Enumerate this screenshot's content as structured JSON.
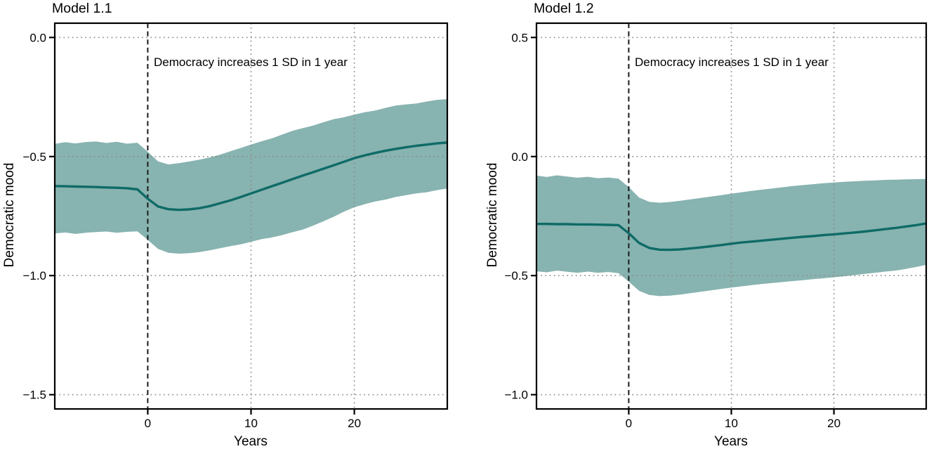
{
  "figure": {
    "background": "#ffffff",
    "colors": {
      "line": "#0f6b67",
      "band": "#87b3b0",
      "grid": "#8d8d8d",
      "vline": "#1a1a1a",
      "axis": "#000000",
      "text": "#000000"
    }
  },
  "chart_data": [
    {
      "type": "line",
      "title": "Model 1.1",
      "xlabel": "Years",
      "ylabel": "Democratic mood",
      "annotation": "Democracy increases 1 SD in 1 year",
      "xlim": [
        -9,
        29
      ],
      "ylim": [
        -1.56,
        0.06
      ],
      "xticks": [
        0,
        10,
        20
      ],
      "xtick_labels": [
        "0",
        "10",
        "20"
      ],
      "yticks": [
        0,
        -0.5,
        -1.0,
        -1.5
      ],
      "ytick_labels": [
        "0.0",
        "−0.5",
        "−1.0",
        "−1.5"
      ],
      "vline_x": 0,
      "grid": "dotted",
      "legend": "none",
      "x": [
        -9,
        -8,
        -7,
        -6,
        -5,
        -4,
        -3,
        -2,
        -1,
        0,
        1,
        2,
        3,
        4,
        5,
        6,
        7,
        8,
        9,
        10,
        11,
        12,
        13,
        14,
        15,
        16,
        17,
        18,
        19,
        20,
        21,
        22,
        23,
        24,
        25,
        26,
        27,
        28,
        29
      ],
      "series": [
        {
          "name": "estimate",
          "values": [
            -0.624,
            -0.625,
            -0.626,
            -0.627,
            -0.628,
            -0.63,
            -0.631,
            -0.633,
            -0.638,
            -0.677,
            -0.71,
            -0.721,
            -0.724,
            -0.722,
            -0.717,
            -0.708,
            -0.696,
            -0.684,
            -0.67,
            -0.655,
            -0.64,
            -0.625,
            -0.61,
            -0.595,
            -0.58,
            -0.566,
            -0.551,
            -0.537,
            -0.522,
            -0.507,
            -0.495,
            -0.485,
            -0.476,
            -0.468,
            -0.461,
            -0.455,
            -0.45,
            -0.445,
            -0.441
          ]
        },
        {
          "name": "ci_upper",
          "values": [
            -0.447,
            -0.44,
            -0.445,
            -0.439,
            -0.437,
            -0.443,
            -0.438,
            -0.446,
            -0.442,
            -0.48,
            -0.52,
            -0.533,
            -0.528,
            -0.521,
            -0.513,
            -0.504,
            -0.492,
            -0.478,
            -0.464,
            -0.45,
            -0.436,
            -0.424,
            -0.408,
            -0.392,
            -0.381,
            -0.37,
            -0.356,
            -0.343,
            -0.335,
            -0.324,
            -0.314,
            -0.307,
            -0.296,
            -0.286,
            -0.281,
            -0.277,
            -0.269,
            -0.262,
            -0.259
          ]
        },
        {
          "name": "ci_lower",
          "values": [
            -0.823,
            -0.819,
            -0.825,
            -0.82,
            -0.817,
            -0.815,
            -0.82,
            -0.816,
            -0.814,
            -0.85,
            -0.888,
            -0.904,
            -0.908,
            -0.906,
            -0.901,
            -0.894,
            -0.885,
            -0.876,
            -0.869,
            -0.858,
            -0.847,
            -0.84,
            -0.83,
            -0.818,
            -0.807,
            -0.79,
            -0.772,
            -0.753,
            -0.731,
            -0.713,
            -0.7,
            -0.689,
            -0.681,
            -0.67,
            -0.662,
            -0.655,
            -0.65,
            -0.641,
            -0.634
          ]
        }
      ]
    },
    {
      "type": "line",
      "title": "Model 1.2",
      "xlabel": "Years",
      "ylabel": "Democratic mood",
      "annotation": "Democracy increases 1 SD in 1 year",
      "xlim": [
        -9,
        29
      ],
      "ylim": [
        -1.06,
        0.56
      ],
      "xticks": [
        0,
        10,
        20
      ],
      "xtick_labels": [
        "0",
        "10",
        "20"
      ],
      "yticks": [
        0.5,
        0,
        -0.5,
        -1.0
      ],
      "ytick_labels": [
        "0.5",
        "0.0",
        "−0.5",
        "−1.0"
      ],
      "vline_x": 0,
      "grid": "dotted",
      "legend": "none",
      "x": [
        -9,
        -8,
        -7,
        -6,
        -5,
        -4,
        -3,
        -2,
        -1,
        0,
        1,
        2,
        3,
        4,
        5,
        6,
        7,
        8,
        9,
        10,
        11,
        12,
        13,
        14,
        15,
        16,
        17,
        18,
        19,
        20,
        21,
        22,
        23,
        24,
        25,
        26,
        27,
        28,
        29
      ],
      "series": [
        {
          "name": "estimate",
          "values": [
            -0.283,
            -0.283,
            -0.284,
            -0.284,
            -0.285,
            -0.285,
            -0.286,
            -0.287,
            -0.288,
            -0.322,
            -0.363,
            -0.384,
            -0.391,
            -0.392,
            -0.39,
            -0.386,
            -0.382,
            -0.377,
            -0.372,
            -0.366,
            -0.361,
            -0.357,
            -0.353,
            -0.349,
            -0.345,
            -0.341,
            -0.337,
            -0.334,
            -0.33,
            -0.327,
            -0.323,
            -0.319,
            -0.315,
            -0.31,
            -0.305,
            -0.3,
            -0.294,
            -0.288,
            -0.281
          ]
        },
        {
          "name": "ci_upper",
          "values": [
            -0.08,
            -0.086,
            -0.079,
            -0.084,
            -0.089,
            -0.085,
            -0.091,
            -0.088,
            -0.093,
            -0.128,
            -0.172,
            -0.19,
            -0.194,
            -0.191,
            -0.186,
            -0.18,
            -0.174,
            -0.168,
            -0.162,
            -0.156,
            -0.15,
            -0.144,
            -0.139,
            -0.134,
            -0.129,
            -0.124,
            -0.12,
            -0.116,
            -0.112,
            -0.109,
            -0.106,
            -0.104,
            -0.102,
            -0.1,
            -0.098,
            -0.097,
            -0.096,
            -0.095,
            -0.094
          ]
        },
        {
          "name": "ci_lower",
          "values": [
            -0.482,
            -0.486,
            -0.479,
            -0.484,
            -0.488,
            -0.483,
            -0.488,
            -0.485,
            -0.49,
            -0.525,
            -0.564,
            -0.581,
            -0.586,
            -0.584,
            -0.58,
            -0.574,
            -0.568,
            -0.562,
            -0.556,
            -0.55,
            -0.545,
            -0.54,
            -0.535,
            -0.531,
            -0.527,
            -0.523,
            -0.519,
            -0.515,
            -0.511,
            -0.507,
            -0.503,
            -0.498,
            -0.493,
            -0.488,
            -0.483,
            -0.479,
            -0.472,
            -0.464,
            -0.455
          ]
        }
      ]
    }
  ]
}
